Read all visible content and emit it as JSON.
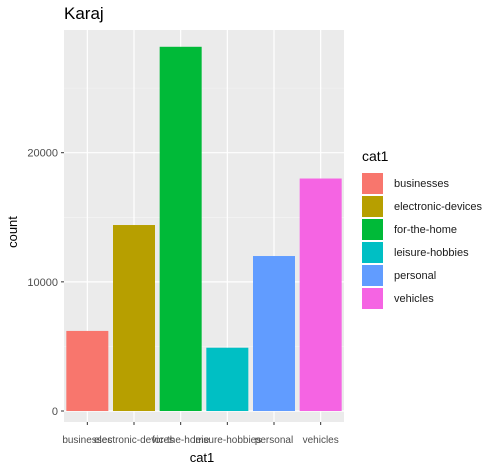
{
  "chart_data": {
    "type": "bar",
    "title": "Karaj",
    "xlabel": "cat1",
    "ylabel": "count",
    "categories": [
      "businesses",
      "electronic-devices",
      "for-the-home",
      "leisure-hobbies",
      "personal",
      "vehicles"
    ],
    "values": [
      6200,
      14400,
      28200,
      4900,
      12000,
      18000
    ],
    "colors": [
      "#F8766D",
      "#B79F00",
      "#00BA38",
      "#00BFC4",
      "#619CFF",
      "#F564E3"
    ],
    "ylim": [
      0,
      29500
    ],
    "yticks": [
      0,
      10000,
      20000
    ],
    "grid": true,
    "legend": {
      "title": "cat1",
      "placement": "right",
      "items": [
        "businesses",
        "electronic-devices",
        "for-the-home",
        "leisure-hobbies",
        "personal",
        "vehicles"
      ]
    }
  }
}
